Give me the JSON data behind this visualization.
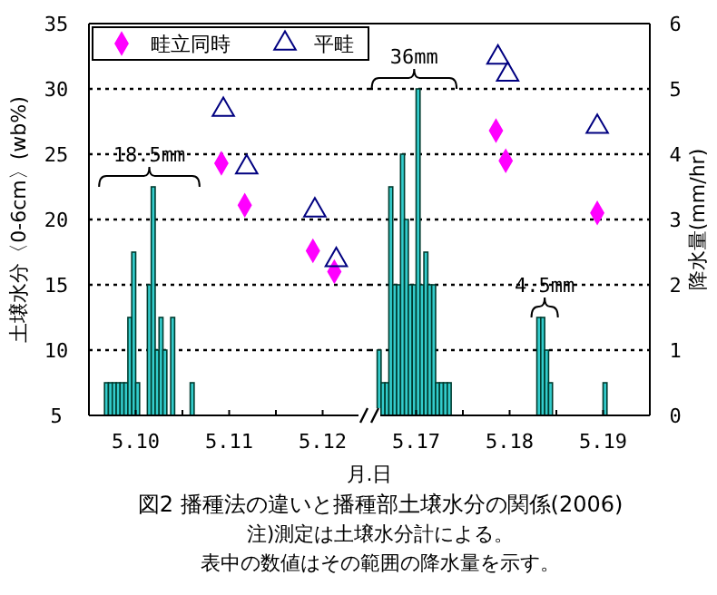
{
  "chart_data": [
    {
      "type": "bar",
      "title": "図2 播種法の違いと播種部土壌水分の関係(2006)",
      "xlabel": "月.日",
      "ylabel": "土壌水分〈0-6cm〉(wb%)",
      "xlim": [
        "2006-05-10T00:00",
        "2006-05-13T00:00"
      ],
      "xticks": [
        {
          "value": "2006-05-10T12:00",
          "label": "5.10"
        },
        {
          "value": "2006-05-11T00:00",
          "label": null
        },
        {
          "value": "2006-05-11T12:00",
          "label": "5.11"
        },
        {
          "value": "2006-05-12T00:00",
          "label": null
        },
        {
          "value": "2006-05-12T12:00",
          "label": "5.12"
        }
      ],
      "ylim": [
        5,
        35
      ],
      "yticks": [
        5,
        10,
        15,
        20,
        25,
        30,
        35
      ],
      "y2lim": [
        0,
        6
      ],
      "grid": "y",
      "legend": "top left",
      "series": [
        {
          "axis": "y2",
          "color": "#33cccc",
          "x": [
            "2006-05-10T04:00",
            "2006-05-10T05:00",
            "2006-05-10T06:00",
            "2006-05-10T07:00",
            "2006-05-10T08:00",
            "2006-05-10T09:00",
            "2006-05-10T10:00",
            "2006-05-10T11:00",
            "2006-05-10T12:00",
            "2006-05-10T15:00",
            "2006-05-10T16:00",
            "2006-05-10T17:00",
            "2006-05-10T18:00",
            "2006-05-10T19:00",
            "2006-05-10T21:00",
            "2006-05-11T02:00"
          ],
          "values": [
            0.5,
            0.5,
            0.5,
            0.5,
            0.5,
            0.5,
            1.5,
            2.5,
            0.5,
            2,
            3.5,
            1,
            1.5,
            1,
            1.5,
            0.5
          ]
        },
        {
          "type": "scatter",
          "name": "畦立同時",
          "color": "#ff00ff",
          "marker": "diamond",
          "x": [
            "2006-05-11T10:00",
            "2006-05-11T16:00",
            "2006-05-12T09:30",
            "2006-05-12T15:00"
          ],
          "values": [
            24.3,
            21.1,
            17.6,
            16.0
          ]
        },
        {
          "type": "scatter",
          "name": "平畦",
          "color": "#000080",
          "marker": "triangle",
          "x": [
            "2006-05-11T10:30",
            "2006-05-11T16:30",
            "2006-05-12T10:00",
            "2006-05-12T15:30"
          ],
          "values": [
            28.4,
            24.0,
            20.7,
            16.9
          ]
        }
      ],
      "annotations": [
        {
          "text": "18.5mm",
          "x": "2006-05-10T16:00",
          "y": 22.5
        },
        "注)測定は土壌水分計による。",
        "表中の数値はその範囲の降水量を示す。"
      ]
    },
    {
      "type": "bar",
      "y2label": "降水量(mm/hr)",
      "xlim": [
        "2006-05-17T00:00",
        "2006-05-20T00:00"
      ],
      "xticks": [
        {
          "value": "2006-05-17T12:00",
          "label": "5.17"
        },
        {
          "value": "2006-05-18T00:00",
          "label": null
        },
        {
          "value": "2006-05-18T12:00",
          "label": "5.18"
        },
        {
          "value": "2006-05-19T00:00",
          "label": null
        },
        {
          "value": "2006-05-19T12:00",
          "label": "5.19"
        }
      ],
      "ylim": [
        5,
        35
      ],
      "y2lim": [
        0,
        6
      ],
      "y2ticks": [
        0,
        1,
        2,
        3,
        4,
        5,
        6
      ],
      "grid": "y",
      "series": [
        {
          "axis": "y2",
          "color": "#33cccc",
          "x": [
            "2006-05-17T02:00",
            "2006-05-17T03:00",
            "2006-05-17T04:00",
            "2006-05-17T05:00",
            "2006-05-17T06:00",
            "2006-05-17T07:00",
            "2006-05-17T08:00",
            "2006-05-17T09:00",
            "2006-05-17T10:00",
            "2006-05-17T11:00",
            "2006-05-17T12:00",
            "2006-05-17T13:00",
            "2006-05-17T14:00",
            "2006-05-17T15:00",
            "2006-05-17T16:00",
            "2006-05-17T17:00",
            "2006-05-17T18:00",
            "2006-05-17T19:00",
            "2006-05-17T20:00",
            "2006-05-18T19:00",
            "2006-05-18T20:00",
            "2006-05-18T21:00",
            "2006-05-18T22:00",
            "2006-05-19T12:00"
          ],
          "values": [
            1,
            0.5,
            0.5,
            3.5,
            2,
            2,
            4,
            3,
            2,
            2,
            5,
            2,
            2.5,
            2,
            2,
            0.5,
            0.5,
            0.5,
            0.5,
            1.5,
            1.5,
            1,
            0.5,
            0.5
          ]
        },
        {
          "type": "scatter",
          "color": "#ff00ff",
          "marker": "diamond",
          "x": [
            "2006-05-18T08:30",
            "2006-05-18T11:00",
            "2006-05-19T10:30"
          ],
          "values": [
            26.8,
            24.5,
            20.5
          ]
        },
        {
          "type": "scatter",
          "color": "#000080",
          "marker": "triangle",
          "x": [
            "2006-05-18T09:00",
            "2006-05-18T11:30",
            "2006-05-19T10:30"
          ],
          "values": [
            32.4,
            31.1,
            27.1
          ]
        }
      ],
      "annotations": [
        {
          "text": "36mm",
          "x": "2006-05-17T12:00",
          "y": 30
        },
        {
          "text": "4.5mm",
          "x": "2006-05-18T19:00",
          "y": 12.5
        }
      ]
    }
  ]
}
